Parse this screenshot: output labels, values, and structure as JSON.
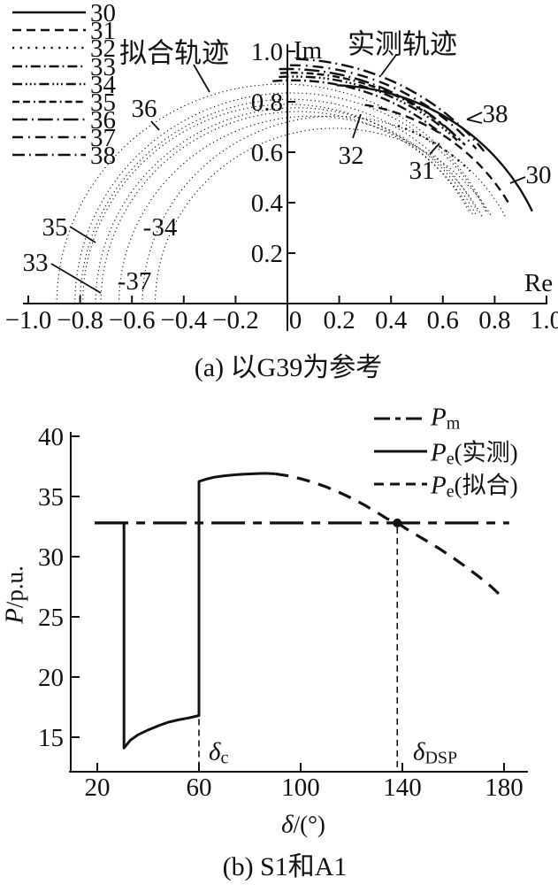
{
  "figure": {
    "background": "#ffffff",
    "ink": "#111111"
  },
  "chart_a": {
    "caption": "(a) 以G39为参考",
    "x_axis_name": "Re",
    "y_axis_name": "Im",
    "fitted_label": "拟合轨迹",
    "measured_label": "实测轨迹",
    "x_tick_labels": [
      "−1.0",
      "−0.8",
      "−0.6",
      "−0.4",
      "−0.2",
      "0",
      "0.2",
      "0.4",
      "0.6",
      "0.8",
      "1.0"
    ],
    "y_tick_labels": [
      "0.2",
      "0.4",
      "0.6",
      "0.8",
      "1.0"
    ],
    "legend_items": [
      "30",
      "31",
      "32",
      "33",
      "34",
      "35",
      "36",
      "37",
      "38"
    ],
    "curve_labels": [
      "36",
      "35",
      "33",
      "-34",
      "-37",
      "32",
      "31",
      "38",
      "30"
    ]
  },
  "chart_b": {
    "caption": "(b) S1和A1",
    "x_label": {
      "sym": "δ",
      "rest": "/(°)"
    },
    "y_label": {
      "sym": "P",
      "rest": "/p.u."
    },
    "x_tick_labels": [
      "20",
      "60",
      "100",
      "140",
      "180"
    ],
    "y_tick_labels": [
      "40",
      "35",
      "30",
      "25",
      "20",
      "15"
    ],
    "legend": [
      {
        "sym": "P",
        "sub": "m",
        "rest": ""
      },
      {
        "sym": "P",
        "sub": "e",
        "rest": "(实测)"
      },
      {
        "sym": "P",
        "sub": "e",
        "rest": "(拟合)"
      }
    ],
    "delta_c_label": {
      "sym": "δ",
      "sub": "c"
    },
    "delta_dsp_label": {
      "sym": "δ",
      "sub": "DSP"
    }
  },
  "chart_data": [
    {
      "type": "line",
      "title": "(a) 以G39为参考",
      "xlabel": "Re",
      "ylabel": "Im",
      "xlim": [
        -1.0,
        1.0
      ],
      "ylim": [
        0,
        1.0
      ],
      "x_ticks": [
        -1.0,
        -0.8,
        -0.6,
        -0.4,
        -0.2,
        0,
        0.2,
        0.4,
        0.6,
        0.8,
        1.0
      ],
      "y_ticks": [
        0.2,
        0.4,
        0.6,
        0.8,
        1.0
      ],
      "note": "Complex-plane voltage trajectories of generators 30–38 referenced to G39; fine-dotted curves are fitted circular trajectories (拟合轨迹), heavy broken curves are measured trajectories (实测轨迹).",
      "fitted_circles": [
        {
          "gen": "36",
          "cx": -0.02,
          "cy": 0,
          "r": 0.87,
          "a1": 180,
          "a2": 24
        },
        {
          "gen": "35",
          "cx": 0.015,
          "cy": 0,
          "r": 0.835,
          "a1": 180,
          "a2": 25
        },
        {
          "gen": "33",
          "cx": 0.01,
          "cy": 0,
          "r": 0.81,
          "a1": 180,
          "a2": 26
        },
        {
          "gen": "38",
          "cx": 0.0,
          "cy": 0,
          "r": 0.79,
          "a1": 180,
          "a2": 27
        },
        {
          "gen": "37",
          "cx": 0.036,
          "cy": 0,
          "r": 0.776,
          "a1": 180,
          "a2": 27
        },
        {
          "gen": "34",
          "cx": 0.041,
          "cy": 0,
          "r": 0.761,
          "a1": 180,
          "a2": 27
        },
        {
          "gen": "30",
          "cx": 0.093,
          "cy": 0,
          "r": 0.743,
          "a1": 180,
          "a2": 26
        },
        {
          "gen": "31",
          "cx": 0.183,
          "cy": 0,
          "r": 0.743,
          "a1": 180,
          "a2": 26
        },
        {
          "gen": "32",
          "cx": 0.185,
          "cy": 0,
          "r": 0.695,
          "a1": 180,
          "a2": 30
        }
      ],
      "measured_arcs": [
        {
          "gen": "38",
          "cx": 0.0,
          "cy": 0,
          "r": 0.97,
          "a1": 88,
          "a2": 38,
          "dash": "14 5 1.8 5"
        },
        {
          "gen": "37",
          "cx": 0.01,
          "cy": 0,
          "r": 0.945,
          "a1": 90,
          "a2": 40,
          "dash": "12 6 1.8 6"
        },
        {
          "gen": "36",
          "cx": 0.0,
          "cy": 0,
          "r": 0.93,
          "a1": 92,
          "a2": 42,
          "dash": "17 5 1.8 5"
        },
        {
          "gen": "35",
          "cx": 0.02,
          "cy": 0,
          "r": 0.915,
          "a1": 93,
          "a2": 44,
          "dash": "8 4 8 4 1.8 4"
        },
        {
          "gen": "34",
          "cx": 0.03,
          "cy": 0,
          "r": 0.9,
          "a1": 94,
          "a2": 46,
          "dash": "11 4 1.8 3 1.8 3 1.8 4"
        },
        {
          "gen": "33",
          "cx": 0.02,
          "cy": 0,
          "r": 0.885,
          "a1": 95,
          "a2": 48,
          "dash": "11 4 1.8 4"
        },
        {
          "gen": "32",
          "cx": 0.17,
          "cy": 0,
          "r": 0.75,
          "a1": 70,
          "a2": 44,
          "dash": "2.2 6.5"
        },
        {
          "gen": "31",
          "cx": 0.16,
          "cy": 0,
          "r": 0.8,
          "a1": 80,
          "a2": 29,
          "dash": "10 6"
        },
        {
          "gen": "30",
          "cx": 0.16,
          "cy": 0,
          "r": 0.866,
          "a1": 88,
          "a2": 25,
          "dash": ""
        }
      ]
    },
    {
      "type": "line",
      "title": "(b) S1和A1",
      "xlabel": "δ/(°)",
      "ylabel": "P/p.u.",
      "xlim": [
        10,
        188
      ],
      "ylim": [
        12,
        41
      ],
      "x_ticks": [
        20,
        60,
        100,
        140,
        180
      ],
      "y_ticks": [
        15,
        20,
        25,
        30,
        35,
        40
      ],
      "series": [
        {
          "name": "Pm",
          "style": "dashdot",
          "points": [
            [
              19,
              32.8
            ],
            [
              182,
              32.8
            ]
          ]
        },
        {
          "name": "Pe(实测)",
          "style": "solid",
          "points": [
            [
              19,
              32.8
            ],
            [
              30.5,
              32.8
            ],
            [
              30.5,
              14.1
            ],
            [
              33,
              14.75
            ],
            [
              36,
              15.2
            ],
            [
              40,
              15.6
            ],
            [
              44,
              15.95
            ],
            [
              48,
              16.25
            ],
            [
              52,
              16.45
            ],
            [
              56,
              16.6
            ],
            [
              58,
              16.7
            ],
            [
              60,
              16.8
            ],
            [
              60,
              36.25
            ],
            [
              63,
              36.45
            ],
            [
              66,
              36.6
            ],
            [
              70,
              36.72
            ],
            [
              74,
              36.8
            ],
            [
              78,
              36.86
            ],
            [
              82,
              36.9
            ],
            [
              86,
              36.92
            ],
            [
              90,
              36.88
            ]
          ]
        },
        {
          "name": "Pe(拟合)",
          "style": "dashed",
          "points": [
            [
              90,
              36.88
            ],
            [
              95,
              36.72
            ],
            [
              100,
              36.48
            ],
            [
              105,
              36.18
            ],
            [
              110,
              35.8
            ],
            [
              115,
              35.36
            ],
            [
              120,
              34.86
            ],
            [
              125,
              34.3
            ],
            [
              130,
              33.68
            ],
            [
              134,
              33.15
            ],
            [
              138,
              32.8
            ],
            [
              142,
              32.25
            ],
            [
              146,
              31.75
            ],
            [
              150,
              31.25
            ],
            [
              155,
              30.6
            ],
            [
              160,
              29.9
            ],
            [
              165,
              29.15
            ],
            [
              170,
              28.35
            ],
            [
              175,
              27.5
            ],
            [
              180,
              26.5
            ]
          ]
        }
      ],
      "markers": [
        {
          "name": "DSP intersection",
          "x": 138,
          "y": 32.8
        }
      ],
      "droplines": [
        {
          "name": "delta_c",
          "x": 60,
          "y_top": 16.8
        },
        {
          "name": "delta_DSP",
          "x": 138,
          "y_top": 32.8
        }
      ]
    }
  ]
}
